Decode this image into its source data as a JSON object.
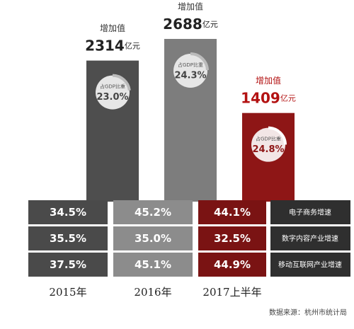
{
  "chart_data": {
    "type": "bar",
    "categories": [
      "2015年",
      "2016年",
      "2017上半年"
    ],
    "value_title": "增加值",
    "unit": "亿元",
    "values": [
      2314,
      2688,
      1409
    ],
    "colors": [
      "#4e4e4e",
      "#7d7d7d",
      "#8e1616"
    ],
    "ylim": [
      0,
      2688
    ],
    "share_title": "占GDP比重",
    "shares": [
      23.0,
      24.3,
      24.8
    ],
    "share_labels": [
      "23.0%",
      "24.3%",
      "24.8%"
    ],
    "metrics": [
      "电子商务增速",
      "数字内容产业增速",
      "移动互联网产业增速"
    ],
    "series": [
      {
        "name": "2015年",
        "color": "#4a4a4a",
        "values": [
          34.5,
          35.5,
          37.5
        ],
        "value_labels": [
          "34.5%",
          "35.5%",
          "37.5%"
        ]
      },
      {
        "name": "2016年",
        "color": "#8c8c8c",
        "values": [
          45.2,
          35.0,
          45.1
        ],
        "value_labels": [
          "45.2%",
          "35.0%",
          "45.1%"
        ]
      },
      {
        "name": "2017上半年",
        "color": "#7a1313",
        "values": [
          44.1,
          32.5,
          44.9
        ],
        "value_labels": [
          "44.1%",
          "32.5%",
          "44.9%"
        ]
      }
    ],
    "source": "数据来源：杭州市统计局"
  }
}
